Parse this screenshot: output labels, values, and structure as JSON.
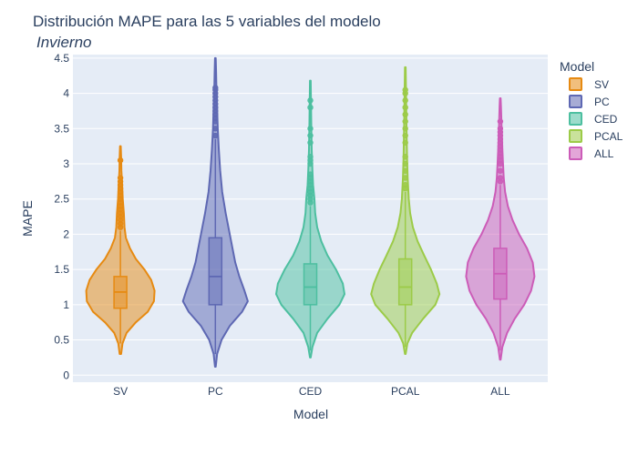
{
  "chart_data": {
    "type": "violin",
    "title": "Distribución MAPE para las 5 variables del modelo",
    "subtitle": "Invierno",
    "xlabel": "Model",
    "ylabel": "MAPE",
    "ylim": [
      -0.1,
      4.55
    ],
    "yticks": [
      "0",
      "0.5",
      "1",
      "1.5",
      "2",
      "2.5",
      "3",
      "3.5",
      "4",
      "4.5"
    ],
    "ytick_values": [
      0,
      0.5,
      1,
      1.5,
      2,
      2.5,
      3,
      3.5,
      4,
      4.5
    ],
    "grid": true,
    "legend_title": "Model",
    "legend_position": "top-right",
    "categories": [
      "SV",
      "PC",
      "CED",
      "PCAL",
      "ALL"
    ],
    "series": [
      {
        "name": "SV",
        "color": "#E68A12",
        "min": 0.3,
        "max": 3.25,
        "q1": 0.95,
        "median": 1.18,
        "q3": 1.4,
        "whisker_low": 0.45,
        "whisker_high": 2.05,
        "density": [
          [
            0.3,
            0.02
          ],
          [
            0.45,
            0.06
          ],
          [
            0.6,
            0.18
          ],
          [
            0.75,
            0.45
          ],
          [
            0.9,
            0.8
          ],
          [
            1.05,
            0.98
          ],
          [
            1.2,
            1.0
          ],
          [
            1.35,
            0.9
          ],
          [
            1.5,
            0.7
          ],
          [
            1.65,
            0.45
          ],
          [
            1.8,
            0.28
          ],
          [
            1.95,
            0.16
          ],
          [
            2.1,
            0.12
          ],
          [
            2.3,
            0.1
          ],
          [
            2.5,
            0.07
          ],
          [
            2.7,
            0.05
          ],
          [
            2.9,
            0.03
          ],
          [
            3.1,
            0.02
          ],
          [
            3.25,
            0.01
          ]
        ],
        "outliers": [
          2.1,
          2.15,
          2.2,
          2.25,
          2.3,
          2.35,
          2.4,
          2.45,
          2.5,
          2.55,
          2.6,
          2.65,
          2.7,
          2.75,
          2.8,
          3.05
        ]
      },
      {
        "name": "PC",
        "color": "#5E68B3",
        "min": 0.12,
        "max": 4.5,
        "q1": 1.0,
        "median": 1.4,
        "q3": 1.95,
        "whisker_low": 0.3,
        "whisker_high": 3.35,
        "density": [
          [
            0.12,
            0.01
          ],
          [
            0.3,
            0.05
          ],
          [
            0.5,
            0.18
          ],
          [
            0.7,
            0.42
          ],
          [
            0.9,
            0.78
          ],
          [
            1.05,
            0.95
          ],
          [
            1.2,
            0.85
          ],
          [
            1.4,
            0.7
          ],
          [
            1.6,
            0.58
          ],
          [
            1.8,
            0.5
          ],
          [
            2.0,
            0.42
          ],
          [
            2.3,
            0.3
          ],
          [
            2.6,
            0.2
          ],
          [
            2.9,
            0.14
          ],
          [
            3.2,
            0.1
          ],
          [
            3.5,
            0.07
          ],
          [
            3.8,
            0.05
          ],
          [
            4.1,
            0.03
          ],
          [
            4.3,
            0.02
          ],
          [
            4.5,
            0.01
          ]
        ],
        "outliers": [
          3.4,
          3.5,
          3.6,
          3.65,
          3.7,
          3.75,
          3.8,
          3.85,
          3.9,
          3.95,
          4.0,
          4.05,
          4.08
        ]
      },
      {
        "name": "CED",
        "color": "#4DBFA0",
        "min": 0.25,
        "max": 4.18,
        "q1": 1.0,
        "median": 1.25,
        "q3": 1.58,
        "whisker_low": 0.35,
        "whisker_high": 2.4,
        "density": [
          [
            0.25,
            0.01
          ],
          [
            0.4,
            0.06
          ],
          [
            0.6,
            0.2
          ],
          [
            0.8,
            0.5
          ],
          [
            1.0,
            0.85
          ],
          [
            1.15,
            1.0
          ],
          [
            1.3,
            0.95
          ],
          [
            1.5,
            0.75
          ],
          [
            1.7,
            0.5
          ],
          [
            1.9,
            0.32
          ],
          [
            2.1,
            0.2
          ],
          [
            2.3,
            0.14
          ],
          [
            2.5,
            0.12
          ],
          [
            2.7,
            0.08
          ],
          [
            2.9,
            0.06
          ],
          [
            3.2,
            0.04
          ],
          [
            3.5,
            0.03
          ],
          [
            3.8,
            0.02
          ],
          [
            4.18,
            0.01
          ]
        ],
        "outliers": [
          2.45,
          2.5,
          2.55,
          2.6,
          2.65,
          2.7,
          2.75,
          2.8,
          2.85,
          3.0,
          3.05,
          3.1,
          3.3,
          3.4,
          3.5,
          3.8,
          3.9
        ]
      },
      {
        "name": "PCAL",
        "color": "#9CCB48",
        "min": 0.3,
        "max": 4.37,
        "q1": 1.0,
        "median": 1.25,
        "q3": 1.65,
        "whisker_low": 0.4,
        "whisker_high": 2.6,
        "density": [
          [
            0.3,
            0.01
          ],
          [
            0.45,
            0.06
          ],
          [
            0.6,
            0.2
          ],
          [
            0.8,
            0.52
          ],
          [
            1.0,
            0.88
          ],
          [
            1.15,
            1.0
          ],
          [
            1.3,
            0.92
          ],
          [
            1.5,
            0.75
          ],
          [
            1.7,
            0.55
          ],
          [
            1.9,
            0.36
          ],
          [
            2.1,
            0.22
          ],
          [
            2.3,
            0.14
          ],
          [
            2.5,
            0.1
          ],
          [
            2.8,
            0.07
          ],
          [
            3.1,
            0.05
          ],
          [
            3.4,
            0.04
          ],
          [
            3.7,
            0.03
          ],
          [
            4.0,
            0.02
          ],
          [
            4.37,
            0.01
          ]
        ],
        "outliers": [
          2.65,
          2.7,
          2.8,
          2.9,
          3.0,
          3.1,
          3.3,
          3.4,
          3.5,
          3.6,
          3.7,
          3.8,
          3.9,
          4.0,
          4.05
        ]
      },
      {
        "name": "ALL",
        "color": "#CC5CB8",
        "min": 0.22,
        "max": 3.93,
        "q1": 1.08,
        "median": 1.44,
        "q3": 1.8,
        "whisker_low": 0.35,
        "whisker_high": 2.7,
        "density": [
          [
            0.22,
            0.01
          ],
          [
            0.4,
            0.06
          ],
          [
            0.6,
            0.2
          ],
          [
            0.8,
            0.42
          ],
          [
            1.0,
            0.7
          ],
          [
            1.2,
            0.9
          ],
          [
            1.4,
            1.0
          ],
          [
            1.6,
            0.95
          ],
          [
            1.8,
            0.78
          ],
          [
            2.0,
            0.55
          ],
          [
            2.2,
            0.36
          ],
          [
            2.4,
            0.22
          ],
          [
            2.6,
            0.14
          ],
          [
            2.8,
            0.1
          ],
          [
            3.0,
            0.08
          ],
          [
            3.2,
            0.06
          ],
          [
            3.5,
            0.04
          ],
          [
            3.8,
            0.02
          ],
          [
            3.93,
            0.01
          ]
        ],
        "outliers": [
          2.75,
          2.8,
          2.9,
          3.0,
          3.05,
          3.1,
          3.15,
          3.2,
          3.25,
          3.3,
          3.35,
          3.4,
          3.45,
          3.5,
          3.6
        ]
      }
    ]
  }
}
